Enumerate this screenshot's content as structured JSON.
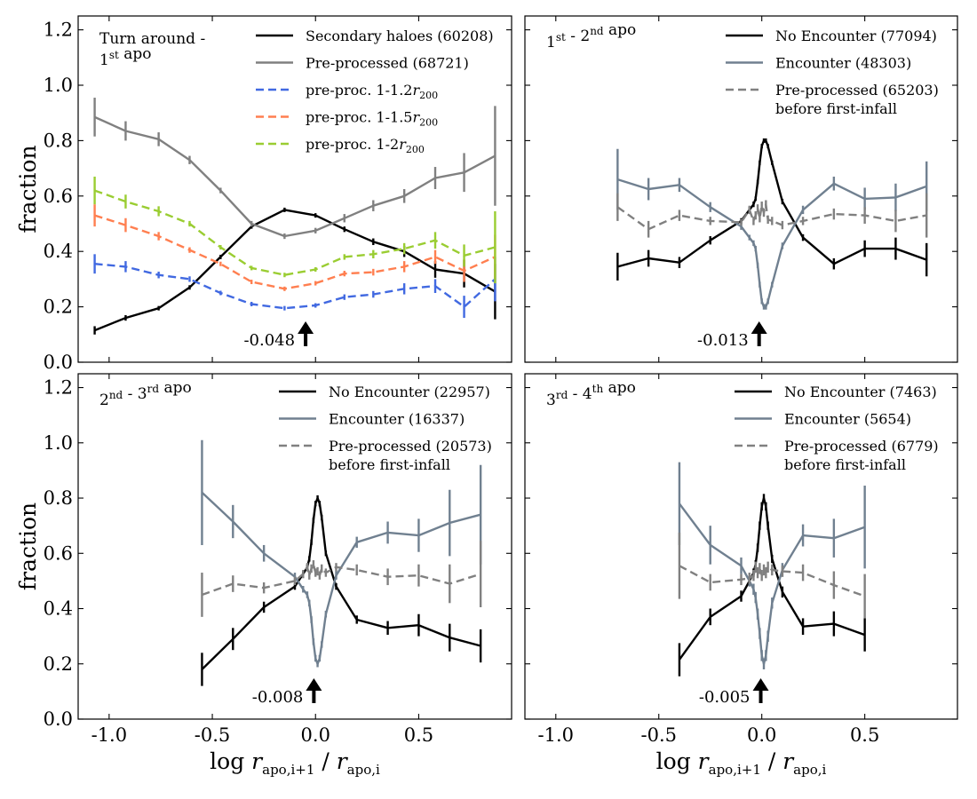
{
  "figure": {
    "ylabel": "fraction",
    "xlabel": "log r_apo,i+1 / r_apo,i",
    "xlim": [
      -1.15,
      0.95
    ],
    "ylim": [
      0.0,
      1.25
    ],
    "xticks": [
      -1.0,
      -0.5,
      0.0,
      0.5
    ],
    "xtick_labels": [
      "-1.0",
      "-0.5",
      "0.0",
      "0.5"
    ],
    "yticks": [
      0.0,
      0.2,
      0.4,
      0.6,
      0.8,
      1.0,
      1.2
    ],
    "ytick_labels": [
      "0.0",
      "0.2",
      "0.4",
      "0.6",
      "0.8",
      "1.0",
      "1.2"
    ]
  },
  "chart_data": [
    {
      "type": "line",
      "title_lines": [
        "Turn around -",
        "1st apo"
      ],
      "annotation": {
        "text": "-0.048",
        "x": -0.048,
        "arrow": "up"
      },
      "series": [
        {
          "name": "Secondary haloes",
          "count": "(60208)",
          "label_suffix": "",
          "color": "#000000",
          "dashed": false,
          "x": [
            -1.07,
            -0.92,
            -0.76,
            -0.61,
            -0.46,
            -0.31,
            -0.15,
            0.0,
            0.14,
            0.28,
            0.43,
            0.58,
            0.72,
            0.87
          ],
          "y": [
            0.115,
            0.16,
            0.195,
            0.27,
            0.38,
            0.49,
            0.55,
            0.53,
            0.48,
            0.435,
            0.4,
            0.335,
            0.32,
            0.255
          ],
          "err": [
            0.015,
            0.01,
            0.008,
            0.008,
            0.008,
            0.008,
            0.008,
            0.008,
            0.01,
            0.012,
            0.02,
            0.03,
            0.05,
            0.1
          ]
        },
        {
          "name": "Pre-processed",
          "count": "(68721)",
          "label_suffix": "",
          "color": "#808080",
          "dashed": false,
          "x": [
            -1.07,
            -0.92,
            -0.76,
            -0.61,
            -0.46,
            -0.31,
            -0.15,
            0.0,
            0.14,
            0.28,
            0.43,
            0.58,
            0.72,
            0.87
          ],
          "y": [
            0.885,
            0.835,
            0.805,
            0.73,
            0.62,
            0.5,
            0.455,
            0.475,
            0.52,
            0.565,
            0.6,
            0.665,
            0.685,
            0.745
          ],
          "err": [
            0.07,
            0.035,
            0.025,
            0.015,
            0.01,
            0.01,
            0.01,
            0.01,
            0.015,
            0.02,
            0.025,
            0.04,
            0.07,
            0.18
          ]
        },
        {
          "name": "pre-proc. 1-1.2r",
          "count": "",
          "label_suffix": "200",
          "color": "#4169e1",
          "dashed": true,
          "x": [
            -1.07,
            -0.92,
            -0.76,
            -0.61,
            -0.46,
            -0.31,
            -0.15,
            0.0,
            0.14,
            0.28,
            0.43,
            0.58,
            0.72,
            0.87
          ],
          "y": [
            0.355,
            0.345,
            0.315,
            0.3,
            0.25,
            0.21,
            0.195,
            0.205,
            0.235,
            0.245,
            0.265,
            0.275,
            0.2,
            0.3
          ],
          "err": [
            0.035,
            0.02,
            0.012,
            0.01,
            0.008,
            0.008,
            0.008,
            0.008,
            0.01,
            0.012,
            0.02,
            0.025,
            0.04,
            0.08
          ]
        },
        {
          "name": "pre-proc. 1-1.5r",
          "count": "",
          "label_suffix": "200",
          "color": "#ff7f50",
          "dashed": true,
          "x": [
            -1.07,
            -0.92,
            -0.76,
            -0.61,
            -0.46,
            -0.31,
            -0.15,
            0.0,
            0.14,
            0.28,
            0.43,
            0.58,
            0.72,
            0.87
          ],
          "y": [
            0.53,
            0.495,
            0.455,
            0.405,
            0.355,
            0.29,
            0.265,
            0.285,
            0.32,
            0.325,
            0.345,
            0.38,
            0.33,
            0.38
          ],
          "err": [
            0.04,
            0.025,
            0.015,
            0.01,
            0.008,
            0.008,
            0.008,
            0.008,
            0.01,
            0.012,
            0.02,
            0.025,
            0.04,
            0.08
          ]
        },
        {
          "name": "pre-proc. 1-2r",
          "count": "",
          "label_suffix": "200",
          "color": "#9acd32",
          "dashed": true,
          "x": [
            -1.07,
            -0.92,
            -0.76,
            -0.61,
            -0.46,
            -0.31,
            -0.15,
            0.0,
            0.14,
            0.28,
            0.43,
            0.58,
            0.72,
            0.87
          ],
          "y": [
            0.62,
            0.58,
            0.545,
            0.5,
            0.415,
            0.34,
            0.315,
            0.335,
            0.38,
            0.39,
            0.41,
            0.44,
            0.385,
            0.415
          ],
          "err": [
            0.05,
            0.025,
            0.018,
            0.01,
            0.008,
            0.008,
            0.008,
            0.008,
            0.01,
            0.015,
            0.02,
            0.03,
            0.04,
            0.13
          ]
        }
      ]
    },
    {
      "type": "line",
      "title_lines": [
        "1st - 2nd apo"
      ],
      "annotation": {
        "text": "-0.013",
        "x": -0.013,
        "arrow": "up"
      },
      "series": [
        {
          "name": "No Encounter",
          "count": "(77094)",
          "label_suffix": "",
          "color": "#000000",
          "dashed": false,
          "x": [
            -0.7,
            -0.55,
            -0.4,
            -0.25,
            -0.1,
            -0.06,
            -0.04,
            -0.03,
            -0.02,
            -0.01,
            0.0,
            0.01,
            0.02,
            0.03,
            0.05,
            0.1,
            0.2,
            0.35,
            0.5,
            0.65,
            0.8
          ],
          "y": [
            0.345,
            0.375,
            0.36,
            0.44,
            0.51,
            0.55,
            0.57,
            0.59,
            0.65,
            0.72,
            0.78,
            0.8,
            0.8,
            0.78,
            0.72,
            0.58,
            0.45,
            0.355,
            0.41,
            0.41,
            0.37
          ],
          "err": [
            0.05,
            0.03,
            0.02,
            0.015,
            0.01,
            0.01,
            0.01,
            0.008,
            0.008,
            0.008,
            0.008,
            0.008,
            0.008,
            0.008,
            0.008,
            0.01,
            0.012,
            0.02,
            0.03,
            0.04,
            0.06
          ]
        },
        {
          "name": "Encounter",
          "count": "(48303)",
          "label_suffix": "",
          "color": "#708090",
          "dashed": false,
          "x": [
            -0.7,
            -0.55,
            -0.4,
            -0.25,
            -0.1,
            -0.06,
            -0.04,
            -0.03,
            -0.02,
            -0.01,
            0.0,
            0.01,
            0.02,
            0.03,
            0.05,
            0.1,
            0.2,
            0.35,
            0.5,
            0.65,
            0.8
          ],
          "y": [
            0.66,
            0.625,
            0.64,
            0.56,
            0.49,
            0.45,
            0.43,
            0.41,
            0.35,
            0.28,
            0.22,
            0.2,
            0.2,
            0.22,
            0.28,
            0.42,
            0.55,
            0.645,
            0.59,
            0.595,
            0.635
          ],
          "err": [
            0.11,
            0.04,
            0.025,
            0.018,
            0.012,
            0.01,
            0.01,
            0.01,
            0.01,
            0.01,
            0.01,
            0.01,
            0.01,
            0.01,
            0.01,
            0.012,
            0.015,
            0.025,
            0.04,
            0.05,
            0.09
          ]
        },
        {
          "name": "Pre-processed",
          "count": "(65203)",
          "label_suffix": "",
          "second_line": "before first-infall",
          "color": "#808080",
          "dashed": true,
          "x": [
            -0.7,
            -0.55,
            -0.4,
            -0.25,
            -0.1,
            -0.06,
            -0.04,
            -0.03,
            -0.02,
            -0.01,
            0.0,
            0.01,
            0.02,
            0.03,
            0.05,
            0.1,
            0.2,
            0.35,
            0.5,
            0.65,
            0.8
          ],
          "y": [
            0.56,
            0.48,
            0.53,
            0.51,
            0.505,
            0.55,
            0.51,
            0.53,
            0.555,
            0.52,
            0.565,
            0.54,
            0.57,
            0.515,
            0.51,
            0.495,
            0.51,
            0.535,
            0.53,
            0.51,
            0.53
          ],
          "err": [
            0.05,
            0.03,
            0.02,
            0.015,
            0.012,
            0.015,
            0.015,
            0.015,
            0.015,
            0.015,
            0.015,
            0.015,
            0.015,
            0.015,
            0.015,
            0.015,
            0.015,
            0.02,
            0.03,
            0.04,
            0.08
          ]
        }
      ]
    },
    {
      "type": "line",
      "title_lines": [
        "2nd - 3rd apo"
      ],
      "annotation": {
        "text": "-0.008",
        "x": -0.008,
        "arrow": "up"
      },
      "series": [
        {
          "name": "No Encounter",
          "count": "(22957)",
          "label_suffix": "",
          "color": "#000000",
          "dashed": false,
          "x": [
            -0.55,
            -0.4,
            -0.25,
            -0.1,
            -0.06,
            -0.04,
            -0.03,
            -0.02,
            -0.01,
            0.0,
            0.01,
            0.02,
            0.03,
            0.05,
            0.1,
            0.2,
            0.35,
            0.5,
            0.65,
            0.8
          ],
          "y": [
            0.18,
            0.29,
            0.405,
            0.48,
            0.525,
            0.55,
            0.58,
            0.64,
            0.72,
            0.78,
            0.8,
            0.78,
            0.73,
            0.6,
            0.48,
            0.36,
            0.33,
            0.34,
            0.295,
            0.265
          ],
          "err": [
            0.06,
            0.04,
            0.02,
            0.012,
            0.01,
            0.01,
            0.01,
            0.01,
            0.01,
            0.01,
            0.01,
            0.01,
            0.01,
            0.01,
            0.012,
            0.015,
            0.025,
            0.04,
            0.05,
            0.06
          ]
        },
        {
          "name": "Encounter",
          "count": "(16337)",
          "label_suffix": "",
          "color": "#708090",
          "dashed": false,
          "x": [
            -0.55,
            -0.4,
            -0.25,
            -0.1,
            -0.06,
            -0.04,
            -0.03,
            -0.02,
            -0.01,
            0.0,
            0.01,
            0.02,
            0.03,
            0.05,
            0.1,
            0.2,
            0.35,
            0.5,
            0.65,
            0.8
          ],
          "y": [
            0.82,
            0.715,
            0.6,
            0.515,
            0.47,
            0.45,
            0.42,
            0.36,
            0.28,
            0.22,
            0.2,
            0.22,
            0.27,
            0.38,
            0.52,
            0.64,
            0.675,
            0.665,
            0.71,
            0.74
          ],
          "err": [
            0.19,
            0.06,
            0.03,
            0.015,
            0.012,
            0.012,
            0.012,
            0.012,
            0.012,
            0.012,
            0.012,
            0.012,
            0.012,
            0.012,
            0.015,
            0.02,
            0.04,
            0.06,
            0.12,
            0.18
          ]
        },
        {
          "name": "Pre-processed",
          "count": "(20573)",
          "label_suffix": "",
          "second_line": "before first-infall",
          "color": "#808080",
          "dashed": true,
          "x": [
            -0.55,
            -0.4,
            -0.25,
            -0.1,
            -0.06,
            -0.04,
            -0.03,
            -0.02,
            -0.01,
            0.0,
            0.01,
            0.02,
            0.03,
            0.05,
            0.1,
            0.2,
            0.35,
            0.5,
            0.65,
            0.8
          ],
          "y": [
            0.45,
            0.49,
            0.475,
            0.5,
            0.525,
            0.55,
            0.52,
            0.545,
            0.56,
            0.53,
            0.535,
            0.52,
            0.545,
            0.53,
            0.55,
            0.54,
            0.515,
            0.52,
            0.49,
            0.525
          ],
          "err": [
            0.08,
            0.03,
            0.02,
            0.015,
            0.015,
            0.015,
            0.015,
            0.015,
            0.015,
            0.015,
            0.015,
            0.015,
            0.015,
            0.015,
            0.015,
            0.02,
            0.03,
            0.04,
            0.07,
            0.12
          ]
        }
      ]
    },
    {
      "type": "line",
      "title_lines": [
        "3rd - 4th apo"
      ],
      "annotation": {
        "text": "-0.005",
        "x": -0.005,
        "arrow": "up"
      },
      "series": [
        {
          "name": "No Encounter",
          "count": "(7463)",
          "label_suffix": "",
          "color": "#000000",
          "dashed": false,
          "x": [
            -0.4,
            -0.25,
            -0.1,
            -0.06,
            -0.04,
            -0.03,
            -0.02,
            -0.01,
            0.0,
            0.01,
            0.02,
            0.03,
            0.05,
            0.1,
            0.2,
            0.35,
            0.5
          ],
          "y": [
            0.215,
            0.37,
            0.445,
            0.5,
            0.53,
            0.56,
            0.62,
            0.7,
            0.77,
            0.8,
            0.77,
            0.7,
            0.58,
            0.46,
            0.335,
            0.345,
            0.305
          ],
          "err": [
            0.06,
            0.03,
            0.02,
            0.015,
            0.015,
            0.015,
            0.015,
            0.015,
            0.015,
            0.015,
            0.015,
            0.015,
            0.015,
            0.02,
            0.03,
            0.045,
            0.06
          ]
        },
        {
          "name": "Encounter",
          "count": "(5654)",
          "label_suffix": "",
          "color": "#708090",
          "dashed": false,
          "x": [
            -0.4,
            -0.25,
            -0.1,
            -0.06,
            -0.04,
            -0.03,
            -0.02,
            -0.01,
            0.0,
            0.01,
            0.02,
            0.03,
            0.05,
            0.1,
            0.2,
            0.35,
            0.5
          ],
          "y": [
            0.78,
            0.63,
            0.555,
            0.5,
            0.47,
            0.44,
            0.38,
            0.31,
            0.23,
            0.2,
            0.23,
            0.3,
            0.42,
            0.54,
            0.665,
            0.655,
            0.695
          ],
          "err": [
            0.15,
            0.07,
            0.03,
            0.02,
            0.02,
            0.02,
            0.02,
            0.02,
            0.02,
            0.02,
            0.02,
            0.02,
            0.02,
            0.025,
            0.04,
            0.07,
            0.15
          ]
        },
        {
          "name": "Pre-processed",
          "count": "(6779)",
          "label_suffix": "",
          "second_line": "before first-infall",
          "color": "#808080",
          "dashed": true,
          "x": [
            -0.4,
            -0.25,
            -0.1,
            -0.06,
            -0.04,
            -0.03,
            -0.02,
            -0.01,
            0.0,
            0.01,
            0.02,
            0.03,
            0.05,
            0.1,
            0.2,
            0.35,
            0.5
          ],
          "y": [
            0.555,
            0.495,
            0.505,
            0.51,
            0.52,
            0.55,
            0.53,
            0.545,
            0.52,
            0.54,
            0.53,
            0.55,
            0.54,
            0.535,
            0.53,
            0.485,
            0.445
          ],
          "err": [
            0.12,
            0.03,
            0.02,
            0.02,
            0.02,
            0.02,
            0.02,
            0.02,
            0.02,
            0.02,
            0.02,
            0.02,
            0.02,
            0.02,
            0.03,
            0.05,
            0.08
          ]
        }
      ]
    }
  ]
}
